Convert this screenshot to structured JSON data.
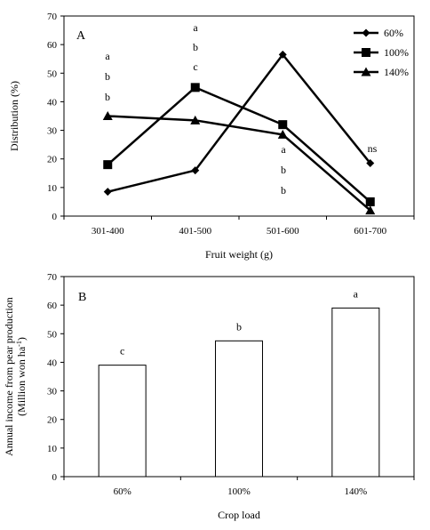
{
  "chart_data": [
    {
      "panel_label": "A",
      "type": "line",
      "categories": [
        "301-400",
        "401-500",
        "501-600",
        "601-700"
      ],
      "xlabel": "Fruit weight (g)",
      "ylabel": "Distribution (%)",
      "ylim": [
        0,
        70
      ],
      "yticks": [
        "0",
        "10",
        "20",
        "30",
        "40",
        "50",
        "60",
        "70"
      ],
      "legend_position": "top-right",
      "series": [
        {
          "name": "60%",
          "marker": "diamond",
          "values": [
            8.5,
            16,
            56.5,
            18.5
          ]
        },
        {
          "name": "100%",
          "marker": "square",
          "values": [
            18,
            45,
            32,
            5
          ]
        },
        {
          "name": "140%",
          "marker": "triangle",
          "values": [
            35,
            33.5,
            28.5,
            2
          ]
        }
      ],
      "annotations": [
        {
          "category": "301-400",
          "letters": [
            "a",
            "b",
            "b"
          ]
        },
        {
          "category": "401-500",
          "letters": [
            "a",
            "b",
            "c"
          ]
        },
        {
          "category": "501-600",
          "letters": [
            "a",
            "b",
            "b"
          ]
        },
        {
          "category": "601-700",
          "letters": [
            "ns"
          ]
        }
      ]
    },
    {
      "panel_label": "B",
      "type": "bar",
      "categories": [
        "60%",
        "100%",
        "140%"
      ],
      "values": [
        39,
        47.5,
        59
      ],
      "data_labels": [
        "c",
        "b",
        "a"
      ],
      "xlabel": "Crop load",
      "ylabel_line1": "Annual income from pear production",
      "ylabel_line2": "(Million won ha",
      "ylabel_sup": "-1",
      "ylabel_end": ")",
      "ylim": [
        0,
        70
      ],
      "yticks": [
        "0",
        "10",
        "20",
        "30",
        "40",
        "50",
        "60",
        "70"
      ]
    }
  ]
}
